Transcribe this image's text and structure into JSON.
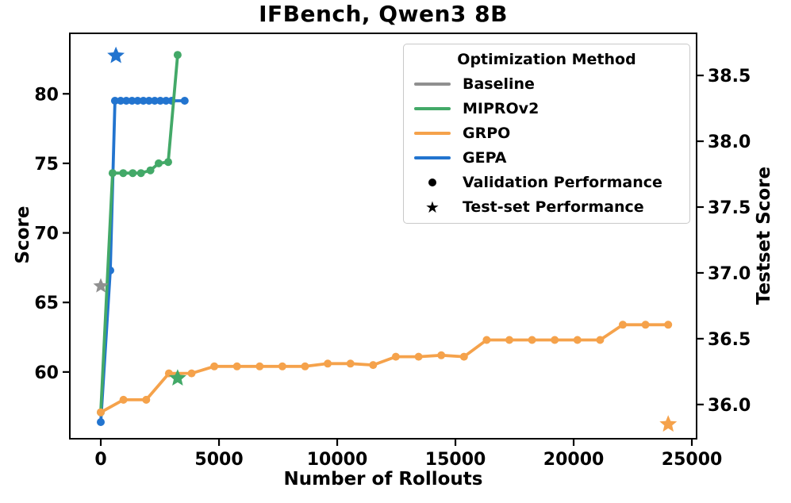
{
  "chart_data": {
    "type": "line",
    "title": "IFBench, Qwen3 8B",
    "grid": false,
    "x_axis": {
      "label": "Number of Rollouts",
      "ticks": [
        0,
        5000,
        10000,
        15000,
        20000,
        25000
      ],
      "range": [
        -1310,
        25200
      ]
    },
    "y_left": {
      "label": "Score",
      "ticks": [
        60,
        65,
        70,
        75,
        80
      ],
      "range": [
        55.2,
        84.35
      ]
    },
    "y_right": {
      "label": "Testset Score",
      "ticks": [
        36.0,
        36.5,
        37.0,
        37.5,
        38.0,
        38.5
      ],
      "decimals": 1,
      "range": [
        35.74,
        38.82
      ]
    },
    "series": [
      {
        "name": "GEPA",
        "color": "#2274cf",
        "axis": "left",
        "marker": "circle",
        "points": [
          [
            0,
            56.4
          ],
          [
            400,
            67.3
          ],
          [
            600,
            79.5
          ],
          [
            840,
            79.5
          ],
          [
            1080,
            79.5
          ],
          [
            1320,
            79.5
          ],
          [
            1560,
            79.5
          ],
          [
            1800,
            79.5
          ],
          [
            2040,
            79.5
          ],
          [
            2280,
            79.5
          ],
          [
            2520,
            79.5
          ],
          [
            2760,
            79.5
          ],
          [
            3000,
            79.5
          ],
          [
            3550,
            79.5
          ]
        ]
      },
      {
        "name": "MIPROv2",
        "color": "#43a968",
        "axis": "left",
        "marker": "circle",
        "points": [
          [
            0,
            57.1
          ],
          [
            500,
            74.3
          ],
          [
            950,
            74.3
          ],
          [
            1350,
            74.3
          ],
          [
            1700,
            74.3
          ],
          [
            2100,
            74.5
          ],
          [
            2450,
            75.0
          ],
          [
            2850,
            75.1
          ],
          [
            3250,
            82.8
          ]
        ]
      },
      {
        "name": "GRPO",
        "color": "#f5a24b",
        "axis": "left",
        "marker": "circle",
        "points": [
          [
            0,
            57.1
          ],
          [
            960,
            58.0
          ],
          [
            1920,
            58.0
          ],
          [
            2880,
            59.9
          ],
          [
            3840,
            59.9
          ],
          [
            4800,
            60.4
          ],
          [
            5760,
            60.4
          ],
          [
            6720,
            60.4
          ],
          [
            7680,
            60.4
          ],
          [
            8640,
            60.4
          ],
          [
            9600,
            60.6
          ],
          [
            10560,
            60.6
          ],
          [
            11520,
            60.5
          ],
          [
            12480,
            61.1
          ],
          [
            13440,
            61.1
          ],
          [
            14400,
            61.2
          ],
          [
            15360,
            61.1
          ],
          [
            16320,
            62.3
          ],
          [
            17280,
            62.3
          ],
          [
            18240,
            62.3
          ],
          [
            19200,
            62.3
          ],
          [
            20160,
            62.3
          ],
          [
            21120,
            62.3
          ],
          [
            22080,
            63.4
          ],
          [
            23040,
            63.4
          ],
          [
            24000,
            63.4
          ]
        ]
      }
    ],
    "test_points": [
      {
        "name": "Baseline",
        "color": "#909090",
        "axis": "right",
        "x": 0,
        "y": 36.9
      },
      {
        "name": "GEPA",
        "color": "#2274cf",
        "axis": "right",
        "x": 640,
        "y": 38.65
      },
      {
        "name": "MIPROv2",
        "color": "#43a968",
        "axis": "right",
        "x": 3250,
        "y": 36.2
      },
      {
        "name": "GRPO",
        "color": "#f5a24b",
        "axis": "right",
        "x": 24000,
        "y": 35.85
      }
    ],
    "legend": {
      "title": "Optimization Method",
      "position": "upper right",
      "items": [
        {
          "label": "Baseline",
          "swatch": "line",
          "color": "#909090"
        },
        {
          "label": "MIPROv2",
          "swatch": "line",
          "color": "#43a968"
        },
        {
          "label": "GRPO",
          "swatch": "line",
          "color": "#f5a24b"
        },
        {
          "label": "GEPA",
          "swatch": "line",
          "color": "#2274cf"
        },
        {
          "label": "Validation Performance",
          "swatch": "dot",
          "color": "#000000"
        },
        {
          "label": "Test-set Performance",
          "swatch": "star",
          "color": "#000000"
        }
      ]
    },
    "colors": {
      "baseline": "#909090",
      "miprov2": "#43a968",
      "grpo": "#f5a24b",
      "gepa": "#2274cf",
      "axis": "#000000",
      "legend_border": "#c9c9c9"
    }
  }
}
